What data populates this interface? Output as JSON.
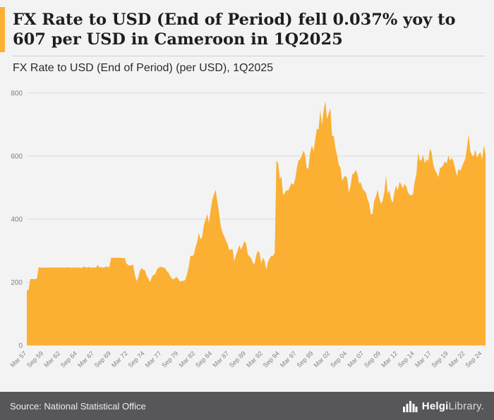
{
  "header": {
    "title": "FX Rate to USD (End of Period) fell 0.037% yoy to 607 per USD in Cameroon in 1Q2025",
    "subtitle": "FX Rate to USD (End of Period) (per USD), 1Q2025"
  },
  "footer": {
    "source": "Source: National Statistical Office",
    "logo_text_primary": "Helgi",
    "logo_text_secondary": "Library."
  },
  "colors": {
    "area_fill": "#FBB033",
    "accent": "#FBB033",
    "background": "#F3F3F3",
    "footer_bg": "#57575A",
    "grid": "#DBDBDB",
    "axis_text": "#808080",
    "title_text": "#1E1E1E"
  },
  "chart_data": {
    "type": "area",
    "title": "FX Rate to USD (End of Period) (per USD), 1Q2025",
    "xlabel": "",
    "ylabel": "",
    "unit": "per USD",
    "country": "Cameroon",
    "final_period": "1Q2025",
    "final_value": 607,
    "yoy_change_pct": -0.037,
    "ylim": [
      0,
      800
    ],
    "y_ticks": [
      0,
      200,
      400,
      600,
      800
    ],
    "grid": true,
    "x_start": "Mar 1957",
    "x_freq": "quarterly",
    "x_tick_every": 10,
    "x_labels": [
      "Mar 57",
      "Sep 59",
      "Mar 62",
      "Sep 64",
      "Mar 67",
      "Sep 69",
      "Mar 72",
      "Sep 74",
      "Mar 77",
      "Sep 79",
      "Mar 82",
      "Sep 84",
      "Mar 87",
      "Sep 89",
      "Mar 92",
      "Sep 94",
      "Mar 97",
      "Sep 99",
      "Mar 02",
      "Sep 04",
      "Mar 07",
      "Sep 09",
      "Mar 12",
      "Sep 14",
      "Mar 17",
      "Sep 19",
      "Mar 22",
      "Sep 24"
    ],
    "values": [
      175,
      175,
      210,
      210,
      210,
      210,
      211,
      247,
      247,
      246,
      246,
      247,
      246,
      247,
      247,
      246,
      247,
      246,
      247,
      247,
      246,
      247,
      246,
      247,
      247,
      247,
      246,
      246,
      247,
      246,
      247,
      247,
      245,
      247,
      250,
      247,
      247,
      249,
      246,
      247,
      247,
      246,
      255,
      247,
      248,
      246,
      247,
      250,
      248,
      249,
      278,
      278,
      277,
      278,
      277,
      278,
      277,
      276,
      278,
      260,
      255,
      252,
      254,
      256,
      226,
      204,
      213,
      235,
      245,
      240,
      238,
      222,
      212,
      200,
      214,
      224,
      224,
      238,
      246,
      248,
      249,
      246,
      245,
      235,
      230,
      220,
      212,
      209,
      214,
      217,
      209,
      201,
      205,
      204,
      208,
      226,
      248,
      284,
      283,
      287,
      311,
      328,
      357,
      336,
      344,
      381,
      399,
      417,
      387,
      429,
      462,
      479,
      493,
      455,
      420,
      378,
      358,
      347,
      332,
      322,
      302,
      304,
      306,
      267,
      285,
      300,
      318,
      303,
      316,
      330,
      323,
      289,
      282,
      277,
      262,
      256,
      285,
      300,
      293,
      259,
      278,
      268,
      240,
      264,
      276,
      284,
      283,
      295,
      586,
      577,
      528,
      535,
      476,
      483,
      493,
      490,
      503,
      515,
      508,
      524,
      558,
      585,
      590,
      599,
      617,
      605,
      560,
      562,
      610,
      634,
      615,
      651,
      687,
      685,
      745,
      699,
      745,
      774,
      717,
      737,
      752,
      663,
      665,
      625,
      602,
      573,
      563,
      521,
      533,
      538,
      528,
      484,
      506,
      542,
      545,
      556,
      544,
      513,
      517,
      497,
      491,
      485,
      464,
      450,
      415,
      416,
      459,
      472,
      493,
      466,
      449,
      458,
      486,
      538,
      481,
      491,
      462,
      452,
      487,
      506,
      491,
      518,
      510,
      497,
      512,
      504,
      485,
      477,
      476,
      479,
      519,
      542,
      611,
      587,
      586,
      604,
      576,
      591,
      584,
      623,
      613,
      574,
      555,
      547,
      533,
      562,
      565,
      573,
      584,
      576,
      602,
      585,
      595,
      583,
      559,
      537,
      559,
      553,
      566,
      579,
      591,
      627,
      669,
      615,
      602,
      601,
      620,
      594,
      607,
      612,
      589,
      634,
      607
    ]
  }
}
